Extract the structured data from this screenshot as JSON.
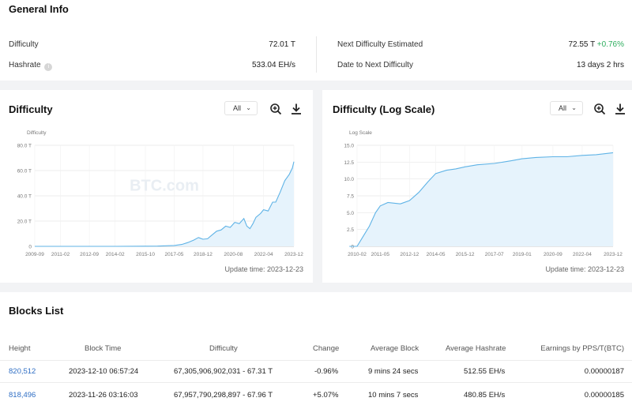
{
  "general": {
    "title": "General Info",
    "difficulty_label": "Difficulty",
    "difficulty_value": "72.01 T",
    "hashrate_label": "Hashrate",
    "hashrate_value": "533.04 EH/s",
    "next_diff_label": "Next Difficulty Estimated",
    "next_diff_value": "72.55 T",
    "next_diff_change": "+0.76%",
    "date_next_label": "Date to Next Difficulty",
    "date_next_value": "13 days 2 hrs"
  },
  "charts": {
    "select_value": "All",
    "chevron_icon": "chevron-down-icon",
    "zoom_icon": "zoom-in-icon",
    "download_icon": "download-icon",
    "colors": {
      "line": "#5fb3e6",
      "area": "#e6f3fc",
      "grid": "#e8e8e8",
      "axis": "#777777",
      "watermark": "#e9eef3"
    }
  },
  "chart_data": [
    {
      "type": "area",
      "title": "Difficulty",
      "ylabel": "Difficulty",
      "watermark": "BTC.com",
      "update_time": "Update time: 2023-12-23",
      "ylim": [
        0,
        80
      ],
      "y_ticks": [
        "0",
        "20.0 T",
        "40.0 T",
        "60.0 T",
        "80.0 T"
      ],
      "x_ticks": [
        "2009-09",
        "2011-02",
        "2012-09",
        "2014-02",
        "2015-10",
        "2017-05",
        "2018-12",
        "2020-08",
        "2022-04",
        "2023-12"
      ],
      "grid": true,
      "series": [
        {
          "x": [
            "2009-09",
            "2011-02",
            "2012-09",
            "2014-02",
            "2015-10",
            "2016-06",
            "2017-05",
            "2017-10",
            "2018-02",
            "2018-06",
            "2018-09",
            "2018-12",
            "2019-03",
            "2019-06",
            "2019-09",
            "2019-12",
            "2020-03",
            "2020-06",
            "2020-09",
            "2020-12",
            "2021-03",
            "2021-05",
            "2021-07",
            "2021-09",
            "2021-11",
            "2022-02",
            "2022-04",
            "2022-07",
            "2022-10",
            "2022-12",
            "2023-03",
            "2023-06",
            "2023-09",
            "2023-11",
            "2023-12"
          ],
          "values": [
            0,
            0,
            0,
            0,
            0.1,
            0.2,
            0.7,
            1.5,
            3,
            5,
            7,
            5.6,
            6,
            9,
            12,
            13,
            16,
            15,
            19,
            18,
            22,
            16,
            14,
            18,
            23,
            26,
            29,
            28,
            35,
            35,
            43,
            52,
            57,
            62,
            67
          ]
        }
      ]
    },
    {
      "type": "area",
      "title": "Difficulty (Log Scale)",
      "ylabel": "Log Scale",
      "watermark": "BTC.com",
      "update_time": "Update time: 2023-12-23",
      "ylim": [
        0,
        15
      ],
      "y_ticks": [
        "0",
        "2.5",
        "5.0",
        "7.5",
        "10.0",
        "12.5",
        "15.0"
      ],
      "x_ticks": [
        "2010-02",
        "2011-05",
        "2012-12",
        "2014-05",
        "2015-12",
        "2017-07",
        "2019-01",
        "2020-09",
        "2022-04",
        "2023-12"
      ],
      "grid": true,
      "series": [
        {
          "x": [
            "2009-09",
            "2010-02",
            "2010-06",
            "2010-10",
            "2011-02",
            "2011-05",
            "2011-10",
            "2012-06",
            "2012-12",
            "2013-06",
            "2013-12",
            "2014-05",
            "2014-12",
            "2015-06",
            "2015-12",
            "2016-08",
            "2017-07",
            "2018-06",
            "2019-01",
            "2019-10",
            "2020-09",
            "2021-06",
            "2022-04",
            "2023-01",
            "2023-12"
          ],
          "values": [
            0,
            0,
            1.5,
            3,
            5,
            6,
            6.5,
            6.3,
            6.8,
            8,
            9.6,
            10.8,
            11.3,
            11.5,
            11.8,
            12.1,
            12.3,
            12.7,
            13.0,
            13.2,
            13.3,
            13.3,
            13.5,
            13.6,
            13.9
          ]
        }
      ]
    }
  ],
  "blocks": {
    "title": "Blocks List",
    "headers": [
      "Height",
      "Block Time",
      "Difficulty",
      "Change",
      "Average Block",
      "Average Hashrate",
      "Earnings by PPS/T(BTC)"
    ],
    "rows": [
      {
        "height": "820,512",
        "time": "2023-12-10 06:57:24",
        "difficulty": "67,305,906,902,031 - 67.31 T",
        "change": "-0.96%",
        "avg_block": "9 mins 24 secs",
        "avg_hashrate": "512.55 EH/s",
        "earnings": "0.00000187"
      },
      {
        "height": "818,496",
        "time": "2023-11-26 03:16:03",
        "difficulty": "67,957,790,298,897 - 67.96 T",
        "change": "+5.07%",
        "avg_block": "10 mins 7 secs",
        "avg_hashrate": "480.85 EH/s",
        "earnings": "0.00000185"
      }
    ]
  }
}
